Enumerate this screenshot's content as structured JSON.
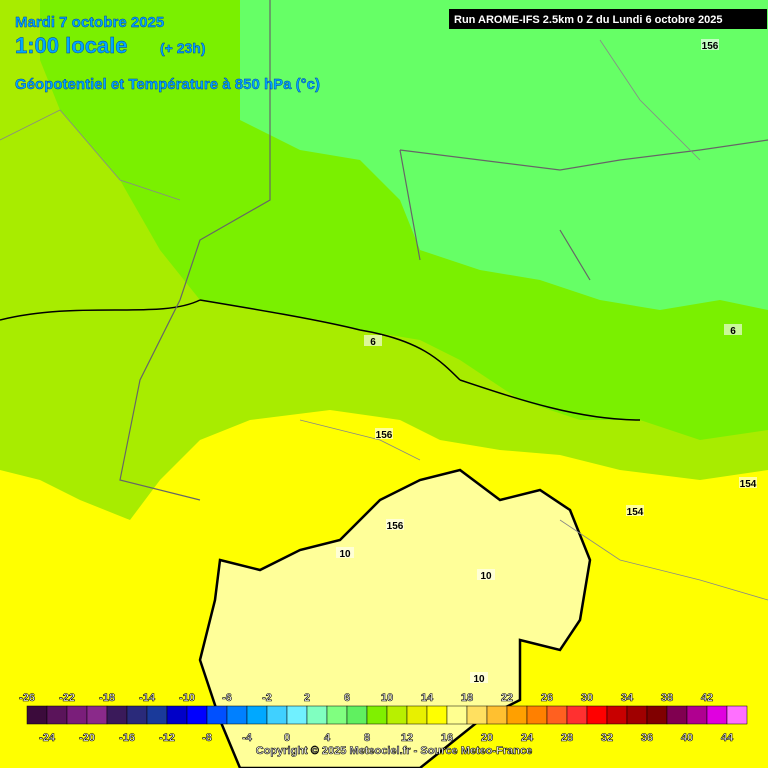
{
  "header": {
    "date": "Mardi 7 octobre 2025",
    "time": "1:00 locale",
    "lead": "(+ 23h)",
    "field": "Géopotentiel et Température à 850 hPa (°c)",
    "run": "Run AROME-IFS 2.5km 0 Z du Lundi 6 octobre 2025"
  },
  "contour_labels": [
    156,
    6,
    6,
    156,
    154,
    154,
    156,
    10,
    10,
    10
  ],
  "colorbar": {
    "labels": [
      -26,
      -24,
      -22,
      -20,
      -18,
      -16,
      -14,
      -12,
      -10,
      -8,
      -6,
      -4,
      -2,
      0,
      2,
      4,
      6,
      8,
      10,
      12,
      14,
      16,
      18,
      20,
      22,
      24,
      26,
      28,
      30,
      32,
      34,
      36,
      38,
      40,
      42,
      44
    ],
    "colors": [
      "#3b0b3b",
      "#5a145a",
      "#7a1e7a",
      "#8a2a8a",
      "#3a1a5a",
      "#2a2a7a",
      "#1a3a9a",
      "#0000c8",
      "#0000ff",
      "#0050ff",
      "#0080ff",
      "#00a8ff",
      "#40d0ff",
      "#70f0ff",
      "#80ffc0",
      "#80ff80",
      "#60f060",
      "#80f000",
      "#b8f000",
      "#e8f000",
      "#ffff00",
      "#ffff90",
      "#ffe060",
      "#ffc030",
      "#ffa000",
      "#ff8000",
      "#ff6020",
      "#ff3030",
      "#ff0000",
      "#c80000",
      "#a00000",
      "#800000",
      "#800050",
      "#b00090",
      "#e000e0",
      "#ff70ff"
    ]
  },
  "footer": {
    "copyright": "Copyright © 2025 Meteociel.fr - Source Meteo-France"
  }
}
